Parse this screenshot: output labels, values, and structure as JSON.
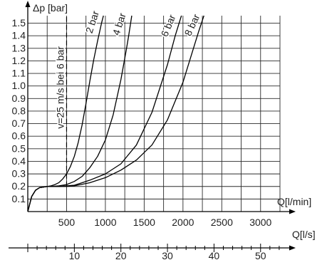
{
  "chart_data": {
    "type": "line",
    "y_axis": {
      "label": "Δp [bar]",
      "ticks": [
        0.1,
        0.2,
        0.3,
        0.4,
        0.5,
        0.6,
        0.7,
        0.8,
        0.9,
        1.0,
        1.1,
        1.2,
        1.3,
        1.4,
        1.5
      ],
      "tick_labels": [
        "0.1",
        "0.2",
        "0.3",
        "0.4",
        "0.5",
        "0.6",
        "0.7",
        "0.8",
        "0.9",
        "1.0",
        "1.1",
        "1.2",
        "1.3",
        "1.4",
        "1.5"
      ],
      "range": [
        0,
        1.56
      ]
    },
    "x_axis_primary": {
      "label": "Q[l/min]",
      "ticks": [
        500,
        1000,
        1500,
        2000,
        2500,
        3000
      ],
      "tick_labels": [
        "500",
        "1000",
        "1500",
        "2000",
        "2500",
        "3000"
      ],
      "range": [
        0,
        3250
      ]
    },
    "x_axis_secondary": {
      "label": "Q[l/s]",
      "ticks": [
        10,
        20,
        30,
        40,
        50
      ],
      "tick_labels": [
        "10",
        "20",
        "30",
        "40",
        "50"
      ],
      "range": [
        0,
        54
      ]
    },
    "grid": true,
    "series": [
      {
        "name": "2 bar",
        "x": [
          0,
          50,
          100,
          150,
          200,
          250,
          300,
          350,
          400,
          450,
          500,
          550,
          600,
          650,
          700,
          750,
          800,
          850,
          900,
          950,
          975
        ],
        "y": [
          0.0,
          0.12,
          0.17,
          0.19,
          0.195,
          0.2,
          0.205,
          0.215,
          0.23,
          0.26,
          0.3,
          0.36,
          0.44,
          0.55,
          0.69,
          0.86,
          1.04,
          1.21,
          1.36,
          1.5,
          1.56
        ]
      },
      {
        "name": "4 bar",
        "x": [
          0,
          50,
          100,
          150,
          200,
          250,
          300,
          400,
          500,
          600,
          700,
          800,
          900,
          1000,
          1100,
          1200,
          1270,
          1300,
          1340
        ],
        "y": [
          0.0,
          0.12,
          0.17,
          0.19,
          0.195,
          0.2,
          0.2,
          0.205,
          0.215,
          0.24,
          0.28,
          0.35,
          0.44,
          0.57,
          0.77,
          1.05,
          1.29,
          1.4,
          1.56
        ]
      },
      {
        "name": "6 bar",
        "x": [
          0,
          50,
          100,
          150,
          200,
          250,
          300,
          400,
          500,
          600,
          700,
          800,
          1000,
          1200,
          1400,
          1600,
          1800,
          1900,
          1980
        ],
        "y": [
          0.0,
          0.12,
          0.17,
          0.19,
          0.195,
          0.2,
          0.2,
          0.2,
          0.205,
          0.21,
          0.23,
          0.25,
          0.3,
          0.38,
          0.53,
          0.79,
          1.17,
          1.4,
          1.56
        ]
      },
      {
        "name": "8 bar",
        "x": [
          0,
          50,
          100,
          150,
          200,
          250,
          300,
          400,
          500,
          600,
          800,
          1000,
          1200,
          1400,
          1600,
          1800,
          2000,
          2100,
          2200,
          2270
        ],
        "y": [
          0.0,
          0.12,
          0.17,
          0.19,
          0.195,
          0.2,
          0.2,
          0.2,
          0.2,
          0.205,
          0.23,
          0.27,
          0.33,
          0.41,
          0.53,
          0.73,
          1.03,
          1.23,
          1.43,
          1.56
        ]
      }
    ],
    "annotations": [
      {
        "text": "v=25 m/s bei 6 bar",
        "x": 500,
        "y_range": [
          0.2,
          1.56
        ],
        "style": "dashed-vertical"
      }
    ],
    "legend": "labels-on-curves"
  }
}
